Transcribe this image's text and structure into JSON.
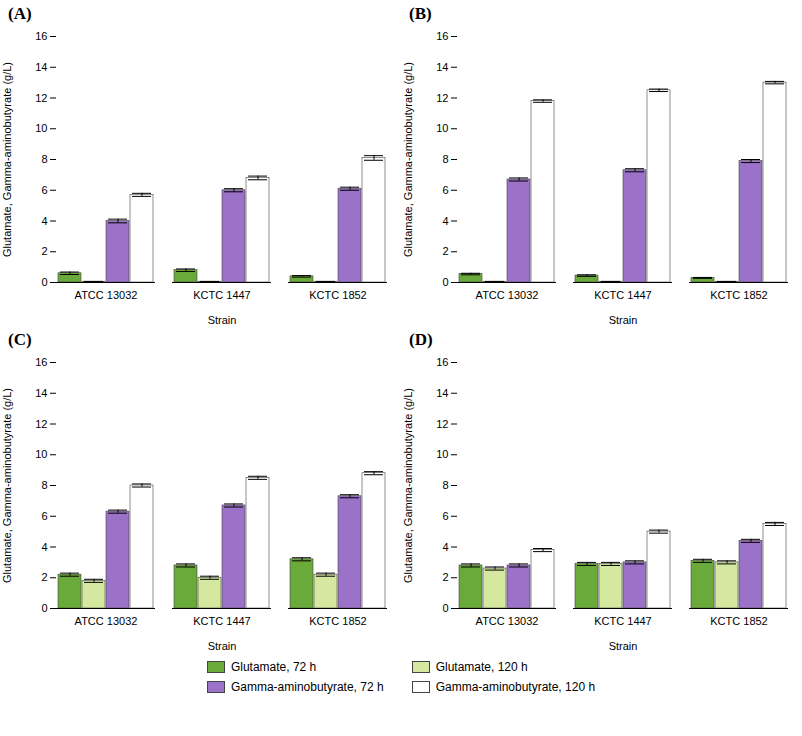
{
  "chart_data": [
    {
      "type": "bar",
      "title": "(A)",
      "xlabel": "Strain",
      "ylabel": "Glutamate, Gamma-aminobutyrate (g/L)",
      "categories": [
        "ATCC 13032",
        "KCTC 1447",
        "KCTC 1852"
      ],
      "series": [
        {
          "name": "Glutamate, 72 h",
          "color": "#6aaa3a",
          "values": [
            0.6,
            0.8,
            0.4
          ],
          "errors": [
            0.08,
            0.08,
            0.05
          ]
        },
        {
          "name": "Glutamate, 120 h",
          "color": "#d4e8a0",
          "values": [
            0.05,
            0.05,
            0.05
          ],
          "errors": [
            0.02,
            0.02,
            0.02
          ]
        },
        {
          "name": "Gamma-aminobutyrate, 72 h",
          "color": "#9b72c8",
          "values": [
            4.0,
            6.0,
            6.1
          ],
          "errors": [
            0.12,
            0.1,
            0.1
          ]
        },
        {
          "name": "Gamma-aminobutyrate, 120 h",
          "color": "#ffffff",
          "values": [
            5.7,
            6.8,
            8.1
          ],
          "errors": [
            0.1,
            0.12,
            0.15
          ]
        }
      ],
      "ylim": [
        0,
        16
      ],
      "yticks": [
        0,
        2,
        4,
        6,
        8,
        10,
        12,
        14,
        16
      ],
      "grid": false,
      "legend": "bottom"
    },
    {
      "type": "bar",
      "title": "(B)",
      "xlabel": "Strain",
      "ylabel": "Glutamate, Gamma-aminobutyrate (g/L)",
      "categories": [
        "ATCC 13032",
        "KCTC 1447",
        "KCTC 1852"
      ],
      "series": [
        {
          "name": "Glutamate, 72 h",
          "color": "#6aaa3a",
          "values": [
            0.55,
            0.45,
            0.3
          ],
          "errors": [
            0.05,
            0.05,
            0.03
          ]
        },
        {
          "name": "Glutamate, 120 h",
          "color": "#d4e8a0",
          "values": [
            0.05,
            0.05,
            0.05
          ],
          "errors": [
            0.02,
            0.02,
            0.02
          ]
        },
        {
          "name": "Gamma-aminobutyrate, 72 h",
          "color": "#9b72c8",
          "values": [
            6.7,
            7.3,
            7.9
          ],
          "errors": [
            0.1,
            0.1,
            0.1
          ]
        },
        {
          "name": "Gamma-aminobutyrate, 120 h",
          "color": "#ffffff",
          "values": [
            11.8,
            12.5,
            13.0
          ],
          "errors": [
            0.08,
            0.08,
            0.08
          ]
        }
      ],
      "ylim": [
        0,
        16
      ],
      "yticks": [
        0,
        2,
        4,
        6,
        8,
        10,
        12,
        14,
        16
      ],
      "grid": false,
      "legend": "bottom"
    },
    {
      "type": "bar",
      "title": "(C)",
      "xlabel": "Strain",
      "ylabel": "Glutamate, Gamma-aminobutyrate (g/L)",
      "categories": [
        "ATCC 13032",
        "KCTC 1447",
        "KCTC 1852"
      ],
      "series": [
        {
          "name": "Glutamate, 72 h",
          "color": "#6aaa3a",
          "values": [
            2.2,
            2.8,
            3.2
          ],
          "errors": [
            0.1,
            0.1,
            0.1
          ]
        },
        {
          "name": "Glutamate, 120 h",
          "color": "#d4e8a0",
          "values": [
            1.8,
            2.0,
            2.2
          ],
          "errors": [
            0.1,
            0.1,
            0.1
          ]
        },
        {
          "name": "Gamma-aminobutyrate, 72 h",
          "color": "#9b72c8",
          "values": [
            6.3,
            6.7,
            7.3
          ],
          "errors": [
            0.1,
            0.1,
            0.1
          ]
        },
        {
          "name": "Gamma-aminobutyrate, 120 h",
          "color": "#ffffff",
          "values": [
            8.0,
            8.5,
            8.8
          ],
          "errors": [
            0.1,
            0.1,
            0.1
          ]
        }
      ],
      "ylim": [
        0,
        16
      ],
      "yticks": [
        0,
        2,
        4,
        6,
        8,
        10,
        12,
        14,
        16
      ],
      "grid": false,
      "legend": "bottom"
    },
    {
      "type": "bar",
      "title": "(D)",
      "xlabel": "Strain",
      "ylabel": "Glutamate, Gamma-aminobutyrate (g/L)",
      "categories": [
        "ATCC 13032",
        "KCTC 1447",
        "KCTC 1852"
      ],
      "series": [
        {
          "name": "Glutamate, 72 h",
          "color": "#6aaa3a",
          "values": [
            2.8,
            2.9,
            3.1
          ],
          "errors": [
            0.1,
            0.1,
            0.1
          ]
        },
        {
          "name": "Glutamate, 120 h",
          "color": "#d4e8a0",
          "values": [
            2.6,
            2.9,
            3.0
          ],
          "errors": [
            0.1,
            0.1,
            0.1
          ]
        },
        {
          "name": "Gamma-aminobutyrate, 72 h",
          "color": "#9b72c8",
          "values": [
            2.8,
            3.0,
            4.4
          ],
          "errors": [
            0.1,
            0.1,
            0.1
          ]
        },
        {
          "name": "Gamma-aminobutyrate, 120 h",
          "color": "#ffffff",
          "values": [
            3.8,
            5.0,
            5.5
          ],
          "errors": [
            0.1,
            0.1,
            0.1
          ]
        }
      ],
      "ylim": [
        0,
        16
      ],
      "yticks": [
        0,
        2,
        4,
        6,
        8,
        10,
        12,
        14,
        16
      ],
      "grid": false,
      "legend": "bottom"
    }
  ]
}
